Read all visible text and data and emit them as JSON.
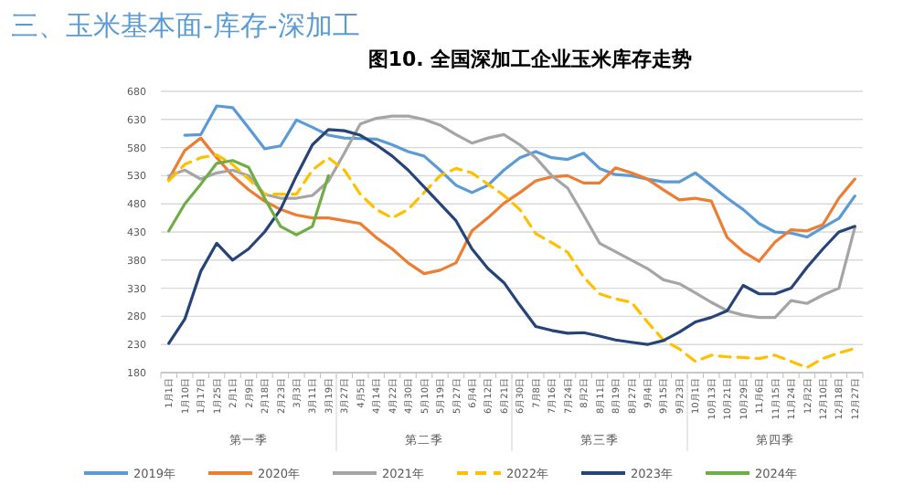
{
  "chart_data": {
    "type": "line",
    "title": "图10. 全国深加工企业玉米库存走势",
    "annotations": [
      "三、玉米基本面-库存-深加工",
      "第一季",
      "第二季",
      "第三季",
      "第四季"
    ],
    "categories": [
      "1月1日",
      "1月10日",
      "1月17日",
      "1月25日",
      "2月1日",
      "2月9日",
      "2月18日",
      "2月23日",
      "3月3日",
      "3月11日",
      "3月19日",
      "3月27日",
      "4月5日",
      "4月14日",
      "4月22日",
      "4月30日",
      "5月10日",
      "5月19日",
      "5月27日",
      "6月4日",
      "6月12日",
      "6月21日",
      "6月30日",
      "7月8日",
      "7月16日",
      "7月24日",
      "8月2日",
      "8月11日",
      "8月19日",
      "8月27日",
      "9月4日",
      "9月15日",
      "9月23日",
      "10月1日",
      "10月13日",
      "10月21日",
      "10月29日",
      "11月6日",
      "11月15日",
      "11月24日",
      "12月2日",
      "12月10日",
      "12月18日",
      "12月27日"
    ],
    "ylim": [
      180,
      680
    ],
    "yticks": [
      180,
      230,
      280,
      330,
      380,
      430,
      480,
      530,
      580,
      630,
      680
    ],
    "grid": "y",
    "legend": "bottom",
    "series": [
      {
        "name": "2019年",
        "color": "#5b9bd5",
        "values": [
          null,
          602,
          603,
          654,
          651,
          615,
          578,
          583,
          629,
          616,
          602,
          597,
          596,
          595,
          585,
          573,
          565,
          540,
          513,
          500,
          513,
          540,
          562,
          573,
          562,
          559,
          570,
          543,
          532,
          530,
          524,
          519,
          519,
          535,
          513,
          490,
          470,
          445,
          430,
          428,
          421,
          438,
          454,
          494
        ]
      },
      {
        "name": "2020年",
        "color": "#ed7d31",
        "values": [
          524,
          575,
          597,
          562,
          530,
          505,
          485,
          470,
          460,
          455,
          455,
          450,
          445,
          420,
          400,
          375,
          356,
          362,
          375,
          432,
          455,
          481,
          500,
          521,
          528,
          530,
          517,
          517,
          544,
          535,
          524,
          505,
          487,
          490,
          485,
          420,
          395,
          378,
          412,
          434,
          432,
          443,
          490,
          524
        ]
      },
      {
        "name": "2021年",
        "color": "#a5a5a5",
        "values": [
          530,
          540,
          524,
          535,
          540,
          530,
          497,
          490,
          490,
          495,
          520,
          570,
          622,
          632,
          636,
          636,
          630,
          620,
          603,
          588,
          597,
          603,
          585,
          562,
          530,
          508,
          460,
          410,
          395,
          380,
          365,
          345,
          338,
          322,
          305,
          290,
          282,
          278,
          278,
          308,
          303,
          318,
          330,
          438
        ]
      },
      {
        "name": "2022年",
        "color": "#ffc000",
        "line_style": "dashed",
        "values": [
          521,
          550,
          562,
          567,
          550,
          524,
          497,
          497,
          497,
          540,
          562,
          540,
          497,
          470,
          455,
          470,
          500,
          530,
          543,
          535,
          515,
          495,
          470,
          427,
          411,
          394,
          350,
          320,
          311,
          305,
          270,
          238,
          222,
          200,
          211,
          208,
          207,
          205,
          211,
          200,
          189,
          205,
          215,
          223
        ]
      },
      {
        "name": "2023年",
        "color": "#264478",
        "values": [
          232,
          275,
          360,
          410,
          380,
          400,
          430,
          470,
          530,
          585,
          612,
          610,
          602,
          585,
          565,
          540,
          510,
          480,
          450,
          400,
          365,
          340,
          300,
          262,
          255,
          250,
          251,
          245,
          238,
          234,
          230,
          237,
          252,
          270,
          278,
          290,
          335,
          320,
          320,
          330,
          367,
          400,
          430,
          440
        ]
      },
      {
        "name": "2024年",
        "color": "#70ad47",
        "values": [
          432,
          480,
          515,
          552,
          557,
          545,
          490,
          440,
          425,
          440,
          530,
          null,
          null,
          null,
          null,
          null,
          null,
          null,
          null,
          null,
          null,
          null,
          null,
          null,
          null,
          null,
          null,
          null,
          null,
          null,
          null,
          null,
          null,
          null,
          null,
          null,
          null,
          null,
          null,
          null,
          null,
          null,
          null,
          null
        ]
      }
    ]
  }
}
